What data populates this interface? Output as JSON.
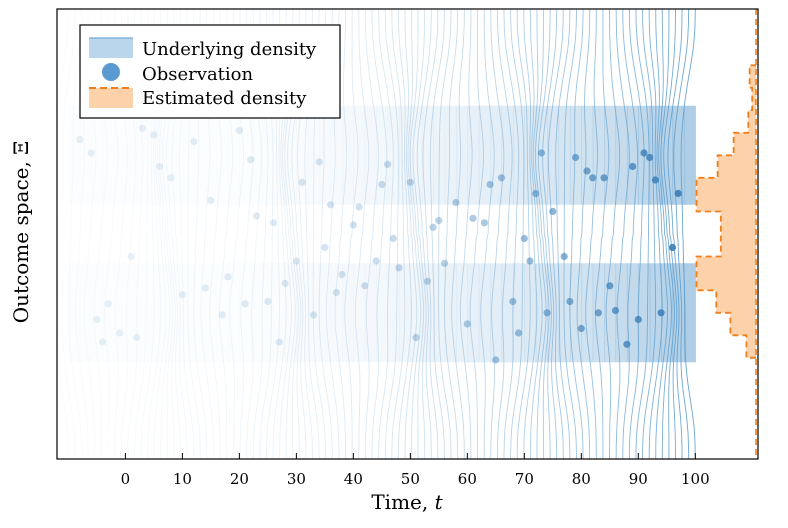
{
  "chart_data": {
    "type": "line",
    "xlabel": "Time, t",
    "xlabel_main": "Time, ",
    "xlabel_var": "t",
    "ylabel": "Outcome space, Ξ",
    "ylabel_main": "Outcome space, ",
    "ylabel_var": "Ξ",
    "xlim": [
      -12,
      111
    ],
    "ylim": [
      -1,
      1
    ],
    "x_ticks": [
      0,
      10,
      20,
      30,
      40,
      50,
      60,
      70,
      80,
      90,
      100
    ],
    "legend": {
      "position": "top-left",
      "entries": [
        {
          "label": "Underlying density",
          "kind": "band"
        },
        {
          "label": "Observation",
          "kind": "point"
        },
        {
          "label": "Estimated density",
          "kind": "histogram"
        }
      ]
    },
    "colors": {
      "underlying": "#5b9bcc",
      "observation": "#3d80b9",
      "estimated_fill": "#fdd2ab",
      "estimated_edge": "#f07f1b"
    },
    "density_model": {
      "description": "bimodal density oscillating in time",
      "t_start": -10,
      "t_end": 100,
      "modes": [
        0.35,
        -0.35
      ],
      "period": 22,
      "bundle_half_width": 0.75
    },
    "observations": [
      {
        "t": -8,
        "y": 0.42
      },
      {
        "t": -6,
        "y": 0.36
      },
      {
        "t": -5,
        "y": -0.38
      },
      {
        "t": -4,
        "y": -0.48
      },
      {
        "t": -3,
        "y": -0.31
      },
      {
        "t": -1,
        "y": -0.44
      },
      {
        "t": 1,
        "y": -0.1
      },
      {
        "t": 2,
        "y": -0.46
      },
      {
        "t": 3,
        "y": 0.47
      },
      {
        "t": 4,
        "y": 0.55
      },
      {
        "t": 5,
        "y": 0.44
      },
      {
        "t": 6,
        "y": 0.3
      },
      {
        "t": 8,
        "y": 0.25
      },
      {
        "t": 10,
        "y": -0.27
      },
      {
        "t": 12,
        "y": 0.41
      },
      {
        "t": 14,
        "y": -0.24
      },
      {
        "t": 15,
        "y": 0.15
      },
      {
        "t": 17,
        "y": -0.36
      },
      {
        "t": 18,
        "y": -0.19
      },
      {
        "t": 19,
        "y": 0.57
      },
      {
        "t": 20,
        "y": 0.46
      },
      {
        "t": 21,
        "y": -0.31
      },
      {
        "t": 22,
        "y": 0.33
      },
      {
        "t": 23,
        "y": 0.08
      },
      {
        "t": 25,
        "y": -0.3
      },
      {
        "t": 26,
        "y": 0.05
      },
      {
        "t": 27,
        "y": -0.48
      },
      {
        "t": 28,
        "y": -0.22
      },
      {
        "t": 30,
        "y": -0.12
      },
      {
        "t": 31,
        "y": 0.23
      },
      {
        "t": 33,
        "y": -0.36
      },
      {
        "t": 34,
        "y": 0.32
      },
      {
        "t": 35,
        "y": -0.06
      },
      {
        "t": 36,
        "y": 0.13
      },
      {
        "t": 37,
        "y": -0.26
      },
      {
        "t": 38,
        "y": -0.18
      },
      {
        "t": 40,
        "y": 0.04
      },
      {
        "t": 41,
        "y": 0.12
      },
      {
        "t": 42,
        "y": -0.23
      },
      {
        "t": 44,
        "y": -0.12
      },
      {
        "t": 45,
        "y": 0.22
      },
      {
        "t": 46,
        "y": 0.31
      },
      {
        "t": 47,
        "y": -0.02
      },
      {
        "t": 48,
        "y": -0.15
      },
      {
        "t": 50,
        "y": 0.23
      },
      {
        "t": 51,
        "y": -0.46
      },
      {
        "t": 53,
        "y": -0.21
      },
      {
        "t": 54,
        "y": 0.03
      },
      {
        "t": 55,
        "y": 0.06
      },
      {
        "t": 56,
        "y": -0.13
      },
      {
        "t": 58,
        "y": 0.14
      },
      {
        "t": 60,
        "y": -0.4
      },
      {
        "t": 61,
        "y": 0.07
      },
      {
        "t": 63,
        "y": 0.05
      },
      {
        "t": 64,
        "y": 0.22
      },
      {
        "t": 65,
        "y": -0.56
      },
      {
        "t": 66,
        "y": 0.25
      },
      {
        "t": 68,
        "y": -0.3
      },
      {
        "t": 69,
        "y": -0.44
      },
      {
        "t": 70,
        "y": -0.02
      },
      {
        "t": 71,
        "y": -0.12
      },
      {
        "t": 72,
        "y": 0.18
      },
      {
        "t": 73,
        "y": 0.36
      },
      {
        "t": 74,
        "y": -0.35
      },
      {
        "t": 75,
        "y": 0.1
      },
      {
        "t": 77,
        "y": -0.1
      },
      {
        "t": 78,
        "y": -0.3
      },
      {
        "t": 79,
        "y": 0.34
      },
      {
        "t": 80,
        "y": -0.42
      },
      {
        "t": 81,
        "y": 0.28
      },
      {
        "t": 82,
        "y": 0.25
      },
      {
        "t": 83,
        "y": -0.35
      },
      {
        "t": 84,
        "y": 0.25
      },
      {
        "t": 85,
        "y": -0.23
      },
      {
        "t": 86,
        "y": -0.34
      },
      {
        "t": 88,
        "y": -0.49
      },
      {
        "t": 89,
        "y": 0.3
      },
      {
        "t": 90,
        "y": -0.38
      },
      {
        "t": 91,
        "y": 0.36
      },
      {
        "t": 92,
        "y": 0.34
      },
      {
        "t": 93,
        "y": 0.24
      },
      {
        "t": 94,
        "y": -0.35
      },
      {
        "t": 96,
        "y": -0.06
      },
      {
        "t": 97,
        "y": 0.18
      }
    ],
    "estimated_density": {
      "orientation": "horizontal",
      "bins": [
        {
          "y0": -0.55,
          "y1": -0.45,
          "density": 0.15
        },
        {
          "y0": -0.45,
          "y1": -0.35,
          "density": 0.4
        },
        {
          "y0": -0.35,
          "y1": -0.25,
          "density": 0.62
        },
        {
          "y0": -0.25,
          "y1": -0.1,
          "density": 0.93
        },
        {
          "y0": -0.1,
          "y1": 0.1,
          "density": 0.55
        },
        {
          "y0": 0.1,
          "y1": 0.25,
          "density": 0.93
        },
        {
          "y0": 0.25,
          "y1": 0.35,
          "density": 0.6
        },
        {
          "y0": 0.35,
          "y1": 0.45,
          "density": 0.35
        },
        {
          "y0": 0.45,
          "y1": 0.55,
          "density": 0.12
        },
        {
          "y0": 0.55,
          "y1": 0.65,
          "density": 0.06
        },
        {
          "y0": 0.65,
          "y1": 0.75,
          "density": 0.1
        }
      ]
    }
  }
}
